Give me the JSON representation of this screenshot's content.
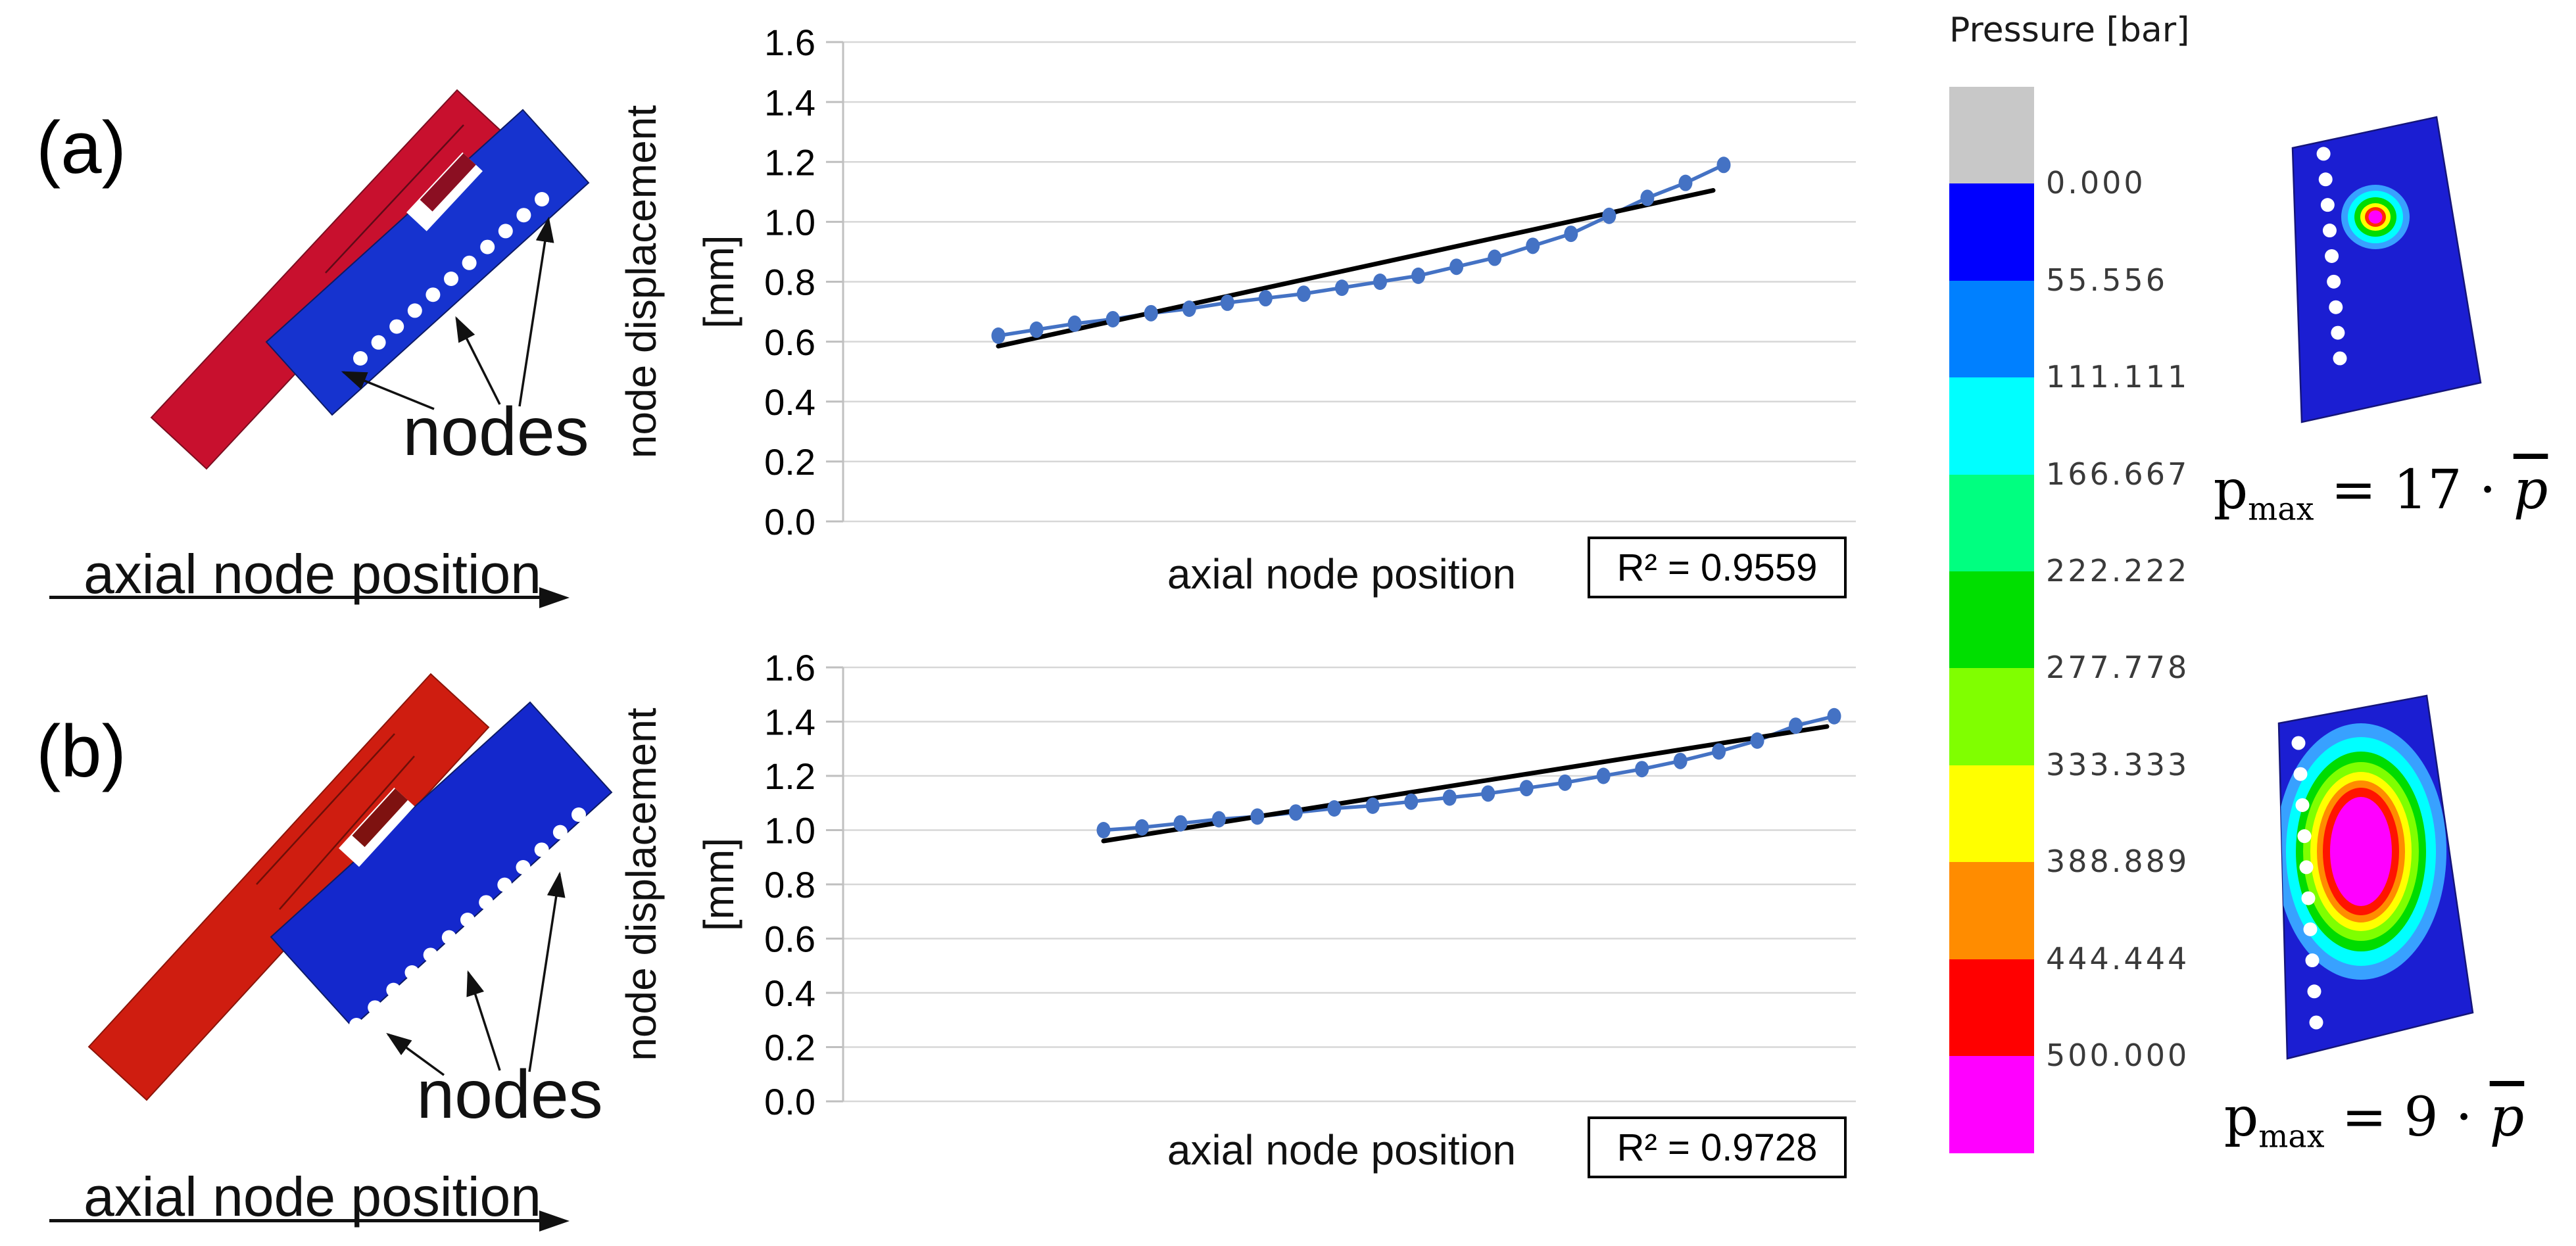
{
  "panels": {
    "a": {
      "label": "(a)",
      "nodes_label": "nodes",
      "axis_arrow_label": "axial node position",
      "node_dot_count": 11,
      "red_beam_color": "#C8102E",
      "red_edge_color": "#5f0a18",
      "blue_beam_color": "#1633CF",
      "notch_color": "#8B0F22",
      "node_dot_color": "#ffffff"
    },
    "b": {
      "label": "(b)",
      "nodes_label": "nodes",
      "axis_arrow_label": "axial node position",
      "node_dot_count": 13,
      "red_beam_color": "#CF1D10",
      "red_edge_color": "#6e0f08",
      "blue_beam_color": "#1428CC",
      "notch_color": "#7E1210",
      "node_dot_color": "#ffffff"
    }
  },
  "chart_data": [
    {
      "type": "line",
      "xlabel": "axial node position",
      "ylabel_line1": "node displacement",
      "ylabel_line2": "[mm]",
      "ylim": [
        0.0,
        1.6
      ],
      "ytick_step": 0.2,
      "yticks": [
        "0.0",
        "0.2",
        "0.4",
        "0.6",
        "0.8",
        "1.0",
        "1.2",
        "1.4",
        "1.6"
      ],
      "grid": true,
      "legend": "none",
      "x_description": "20 equally spaced nodes along axial position (no numeric x tick labels shown)",
      "series": [
        {
          "name": "node displacement",
          "style": "line+marker",
          "color": "#4472C4",
          "values": [
            0.62,
            0.64,
            0.66,
            0.675,
            0.695,
            0.71,
            0.73,
            0.745,
            0.76,
            0.78,
            0.8,
            0.82,
            0.85,
            0.88,
            0.92,
            0.96,
            1.02,
            1.08,
            1.13,
            1.19
          ]
        },
        {
          "name": "linear trend",
          "style": "trendline",
          "color": "#000000",
          "y_start": 0.585,
          "y_end": 1.105
        }
      ],
      "r_squared": "R² = 0.9559"
    },
    {
      "type": "line",
      "xlabel": "axial node position",
      "ylabel_line1": "node displacement",
      "ylabel_line2": "[mm]",
      "ylim": [
        0.0,
        1.6
      ],
      "ytick_step": 0.2,
      "yticks": [
        "0.0",
        "0.2",
        "0.4",
        "0.6",
        "0.8",
        "1.0",
        "1.2",
        "1.4",
        "1.6"
      ],
      "grid": true,
      "legend": "none",
      "x_description": "20 equally spaced nodes along axial position (no numeric x tick labels shown)",
      "series": [
        {
          "name": "node displacement",
          "style": "line+marker",
          "color": "#4472C4",
          "values": [
            1.0,
            1.01,
            1.025,
            1.04,
            1.05,
            1.065,
            1.08,
            1.09,
            1.105,
            1.12,
            1.135,
            1.155,
            1.175,
            1.2,
            1.225,
            1.255,
            1.29,
            1.33,
            1.385,
            1.42
          ]
        },
        {
          "name": "linear trend",
          "style": "trendline",
          "color": "#000000",
          "y_start": 0.96,
          "y_end": 1.382
        }
      ],
      "r_squared": "R² = 0.9728"
    }
  ],
  "colorbar": {
    "title": "Pressure [bar]",
    "segment_colors": [
      "#C8C8C8",
      "#0000FF",
      "#0080FF",
      "#00FFFF",
      "#00FF80",
      "#00DF00",
      "#80FF00",
      "#FFFF00",
      "#FF8C00",
      "#FF0000",
      "#FF00FF"
    ],
    "boundary_labels": [
      "0.000",
      "55.556",
      "111.111",
      "166.667",
      "222.222",
      "277.778",
      "333.333",
      "388.889",
      "444.444",
      "500.000"
    ]
  },
  "contours": [
    {
      "plate_color": "#1B1ED2",
      "dot_count": 10,
      "dot_color": "#ffffff",
      "ring_colors": [
        "#38A1FF",
        "#00FFFF",
        "#00DC00",
        "#FFFF00",
        "#FF2A00",
        "#FF00FF"
      ],
      "formula": {
        "base": "p",
        "sub": "max",
        "rhs": " = 17 · ",
        "var": "p"
      }
    },
    {
      "plate_color": "#1B1ED2",
      "dot_count": 10,
      "dot_color": "#ffffff",
      "ring_colors": [
        "#38A1FF",
        "#00FFFF",
        "#00DC00",
        "#7FFF00",
        "#FFFF00",
        "#FF8C00",
        "#FF1400",
        "#FF00FF"
      ],
      "formula": {
        "base": "p",
        "sub": "max",
        "rhs": " = 9 · ",
        "var": "p"
      }
    }
  ]
}
